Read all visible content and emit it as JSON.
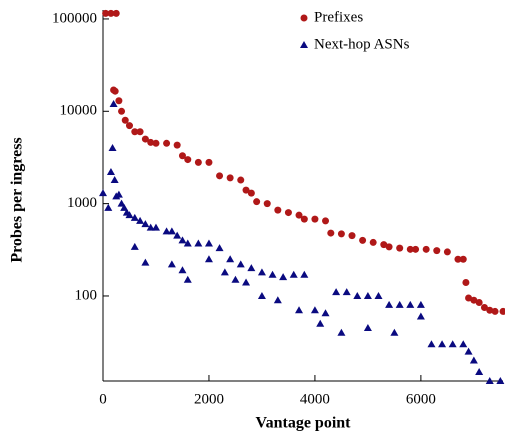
{
  "chart_data": {
    "type": "scatter",
    "xlabel": "Vantage point",
    "ylabel": "Probes per ingress",
    "xlim": [
      0,
      7550
    ],
    "xticks": [
      0,
      2000,
      4000,
      6000
    ],
    "ylim": [
      12,
      125000
    ],
    "yticks": [
      100,
      1000,
      10000,
      100000
    ],
    "ylog": true,
    "legend": "top-right",
    "series": [
      {
        "name": "Prefixes",
        "color": "#b01818",
        "marker": "circle",
        "x": [
          50,
          150,
          250,
          200,
          230,
          300,
          350,
          420,
          500,
          600,
          700,
          800,
          900,
          1000,
          1200,
          1400,
          1500,
          1600,
          1800,
          2000,
          2200,
          2400,
          2600,
          2700,
          2800,
          2900,
          3100,
          3300,
          3500,
          3700,
          3800,
          4000,
          4200,
          4300,
          4500,
          4700,
          4900,
          5100,
          5300,
          5400,
          5600,
          5800,
          5900,
          6100,
          6300,
          6500,
          6700,
          6800,
          6850,
          6900,
          7000,
          7100,
          7200,
          7300,
          7400,
          7550
        ],
        "values": [
          115000,
          115000,
          115000,
          17000,
          16500,
          13000,
          10000,
          8000,
          7000,
          6000,
          6000,
          5000,
          4600,
          4500,
          4500,
          4300,
          3300,
          3000,
          2800,
          2800,
          2000,
          1900,
          1800,
          1400,
          1300,
          1050,
          1000,
          850,
          800,
          750,
          680,
          680,
          650,
          480,
          470,
          450,
          400,
          380,
          360,
          340,
          330,
          320,
          320,
          320,
          310,
          300,
          250,
          250,
          140,
          95,
          90,
          85,
          75,
          70,
          68,
          68
        ]
      },
      {
        "name": "Next-hop ASNs",
        "color": "#0a0a80",
        "marker": "triangle",
        "x": [
          0,
          100,
          150,
          200,
          250,
          300,
          350,
          400,
          450,
          500,
          600,
          700,
          800,
          900,
          1000,
          1200,
          1300,
          1400,
          1500,
          1600,
          1800,
          2000,
          2200,
          2400,
          2600,
          2800,
          3000,
          3200,
          3400,
          3600,
          3800,
          4000,
          4200,
          4400,
          4600,
          4800,
          5000,
          5200,
          5400,
          5600,
          5800,
          6000,
          6200,
          6400,
          6600,
          6800,
          6900,
          7000,
          7100,
          7300,
          7500,
          180,
          220,
          600,
          800,
          1300,
          1500,
          1600,
          2000,
          2300,
          2500,
          2700,
          3000,
          3300,
          3700,
          4100,
          4500,
          5000,
          5500,
          6000
        ],
        "values": [
          1300,
          900,
          2200,
          12000,
          1200,
          1250,
          1000,
          900,
          800,
          750,
          700,
          650,
          600,
          550,
          550,
          500,
          500,
          450,
          400,
          370,
          370,
          370,
          330,
          250,
          220,
          200,
          180,
          170,
          160,
          170,
          170,
          70,
          65,
          110,
          110,
          100,
          100,
          100,
          80,
          80,
          80,
          80,
          30,
          30,
          30,
          30,
          25,
          20,
          15,
          12,
          12,
          4000,
          1800,
          340,
          230,
          220,
          190,
          150,
          250,
          180,
          150,
          140,
          100,
          90,
          70,
          50,
          40,
          45,
          40,
          60
        ]
      }
    ]
  }
}
